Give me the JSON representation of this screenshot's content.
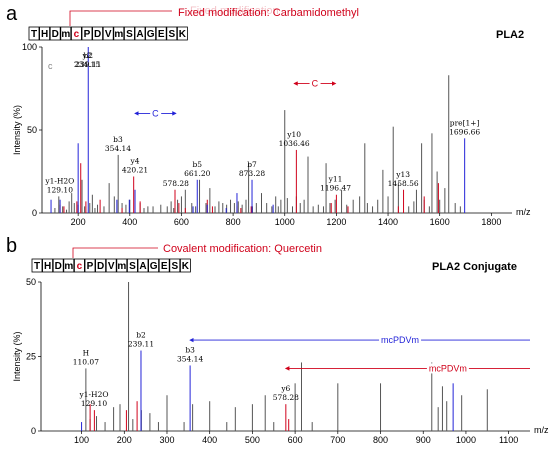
{
  "panels": {
    "a": {
      "letter": "a",
      "sequence": [
        "T",
        "H",
        "D",
        "m",
        "c",
        "P",
        "D",
        "V",
        "m",
        "S",
        "A",
        "G",
        "E",
        "S",
        "K"
      ],
      "highlight_index": 4,
      "note": "Fixed modification: Carbamidomethyl",
      "faded_text": "Fixed modification",
      "title": "PLA2"
    },
    "b": {
      "letter": "b",
      "sequence": [
        "T",
        "H",
        "D",
        "m",
        "c",
        "P",
        "D",
        "V",
        "m",
        "S",
        "A",
        "G",
        "E",
        "S",
        "K"
      ],
      "highlight_index": 4,
      "note": "Covalent modification: Quercetin",
      "title": "PLA2 Conjugate"
    }
  },
  "colors": {
    "red": "#d0021b",
    "blue": "#2323d8",
    "black": "#000000",
    "gray": "#555555"
  },
  "chart_data": [
    {
      "type": "bar",
      "subtype": "mass-spectrum",
      "xlabel": "m/z",
      "ylabel": "Intensity (%)",
      "xlim": [
        60,
        1880
      ],
      "ylim": [
        0,
        100
      ],
      "xticks": [
        200,
        400,
        600,
        800,
        1000,
        1200,
        1400,
        1600,
        1800
      ],
      "yticks": [
        0,
        50,
        100
      ],
      "corner_label": "c",
      "peaks_black": [
        [
          110,
          3
        ],
        [
          125,
          10
        ],
        [
          140,
          4
        ],
        [
          155,
          2
        ],
        [
          165,
          7
        ],
        [
          175,
          12
        ],
        [
          185,
          6
        ],
        [
          200,
          5
        ],
        [
          215,
          20
        ],
        [
          225,
          4
        ],
        [
          245,
          6
        ],
        [
          255,
          11
        ],
        [
          265,
          3
        ],
        [
          275,
          5
        ],
        [
          300,
          4
        ],
        [
          320,
          18
        ],
        [
          340,
          10
        ],
        [
          355,
          35
        ],
        [
          370,
          6
        ],
        [
          385,
          5
        ],
        [
          400,
          8
        ],
        [
          440,
          6
        ],
        [
          455,
          3
        ],
        [
          470,
          4
        ],
        [
          490,
          4
        ],
        [
          520,
          5
        ],
        [
          545,
          4
        ],
        [
          560,
          7
        ],
        [
          570,
          3
        ],
        [
          585,
          8
        ],
        [
          600,
          10
        ],
        [
          615,
          14
        ],
        [
          640,
          6
        ],
        [
          655,
          4
        ],
        [
          670,
          20
        ],
        [
          695,
          6
        ],
        [
          710,
          15
        ],
        [
          730,
          4
        ],
        [
          745,
          7
        ],
        [
          760,
          6
        ],
        [
          775,
          5
        ],
        [
          790,
          8
        ],
        [
          805,
          6
        ],
        [
          820,
          7
        ],
        [
          835,
          5
        ],
        [
          850,
          8
        ],
        [
          860,
          30
        ],
        [
          875,
          4
        ],
        [
          890,
          6
        ],
        [
          910,
          12
        ],
        [
          930,
          6
        ],
        [
          950,
          4
        ],
        [
          965,
          10
        ],
        [
          975,
          4
        ],
        [
          985,
          8
        ],
        [
          1000,
          62
        ],
        [
          1010,
          9
        ],
        [
          1030,
          4
        ],
        [
          1045,
          10
        ],
        [
          1060,
          6
        ],
        [
          1075,
          8
        ],
        [
          1090,
          34
        ],
        [
          1110,
          4
        ],
        [
          1130,
          5
        ],
        [
          1150,
          4
        ],
        [
          1160,
          30
        ],
        [
          1175,
          6
        ],
        [
          1195,
          8
        ],
        [
          1220,
          14
        ],
        [
          1240,
          5
        ],
        [
          1265,
          8
        ],
        [
          1290,
          10
        ],
        [
          1310,
          42
        ],
        [
          1320,
          6
        ],
        [
          1340,
          4
        ],
        [
          1360,
          8
        ],
        [
          1380,
          26
        ],
        [
          1400,
          10
        ],
        [
          1420,
          52
        ],
        [
          1440,
          18
        ],
        [
          1480,
          4
        ],
        [
          1500,
          7
        ],
        [
          1510,
          14
        ],
        [
          1530,
          42
        ],
        [
          1540,
          8
        ],
        [
          1560,
          4
        ],
        [
          1570,
          48
        ],
        [
          1590,
          25
        ],
        [
          1600,
          8
        ],
        [
          1620,
          15
        ],
        [
          1635,
          83
        ],
        [
          1660,
          6
        ],
        [
          1680,
          4
        ]
      ],
      "peaks_red": [
        [
          130,
          5
        ],
        [
          145,
          4
        ],
        [
          195,
          7
        ],
        [
          210,
          30
        ],
        [
          230,
          7
        ],
        [
          285,
          8
        ],
        [
          370,
          3
        ],
        [
          415,
          22
        ],
        [
          440,
          7
        ],
        [
          575,
          14
        ],
        [
          590,
          6
        ],
        [
          615,
          3
        ],
        [
          700,
          8
        ],
        [
          720,
          4
        ],
        [
          815,
          4
        ],
        [
          830,
          3
        ],
        [
          870,
          4
        ],
        [
          1045,
          38
        ],
        [
          1180,
          6
        ],
        [
          1200,
          11
        ],
        [
          1245,
          4
        ],
        [
          1440,
          4
        ],
        [
          1460,
          14
        ],
        [
          1540,
          10
        ],
        [
          1595,
          18
        ]
      ],
      "peaks_blue": [
        [
          95,
          8
        ],
        [
          130,
          8
        ],
        [
          200,
          42
        ],
        [
          239.11,
          100
        ],
        [
          350,
          8
        ],
        [
          398,
          8
        ],
        [
          420.21,
          14
        ],
        [
          645,
          4
        ],
        [
          661.2,
          20
        ],
        [
          700,
          5
        ],
        [
          773.28,
          3
        ],
        [
          815,
          12
        ],
        [
          873.28,
          20
        ],
        [
          955,
          5
        ],
        [
          1696.66,
          45
        ]
      ],
      "annotations": [
        {
          "label": "y1-H2O",
          "value": "129.10",
          "mz": 129.1,
          "type": "y"
        },
        {
          "label": "y2",
          "value": "234.15",
          "mz": 234.15,
          "type": "y"
        },
        {
          "label": "b2",
          "value": "239.11",
          "mz": 239.11,
          "type": "b"
        },
        {
          "label": "b3",
          "value": "354.14",
          "mz": 354.14,
          "type": "b"
        },
        {
          "label": "y4",
          "value": "420.21",
          "mz": 420.21,
          "type": "y"
        },
        {
          "label": "",
          "value": "578.28",
          "mz": 578.28,
          "type": "y"
        },
        {
          "label": "b5",
          "value": "661.20",
          "mz": 661.2,
          "type": "b"
        },
        {
          "label": "b7",
          "value": "873.28",
          "mz": 873.28,
          "type": "b"
        },
        {
          "label": "y10",
          "value": "1036.46",
          "mz": 1036.46,
          "type": "y"
        },
        {
          "label": "y11",
          "value": "1196.47",
          "mz": 1196.47,
          "type": "y"
        },
        {
          "label": "y13",
          "value": "1458.56",
          "mz": 1458.56,
          "type": "y"
        },
        {
          "label": "pre[1+]",
          "value": "1696.66",
          "mz": 1696.66,
          "type": "pre"
        }
      ],
      "spans": [
        {
          "label": "C",
          "from": 420.21,
          "to": 578.28,
          "level": 60,
          "color": "blue"
        },
        {
          "label": "C",
          "from": 1036.46,
          "to": 1196.47,
          "level": 78,
          "color": "red"
        }
      ]
    },
    {
      "type": "bar",
      "subtype": "mass-spectrum",
      "xlabel": "m/z",
      "ylabel": "Intensity (%)",
      "xlim": [
        5,
        1150
      ],
      "ylim": [
        0,
        50
      ],
      "xticks": [
        100,
        200,
        300,
        400,
        500,
        600,
        700,
        800,
        900,
        1000,
        1100
      ],
      "yticks": [
        0,
        25,
        50
      ],
      "peaks_black": [
        [
          110.07,
          21
        ],
        [
          120,
          4
        ],
        [
          135,
          5
        ],
        [
          155,
          3
        ],
        [
          175,
          8
        ],
        [
          190,
          9
        ],
        [
          210,
          50
        ],
        [
          220,
          4
        ],
        [
          240,
          7
        ],
        [
          260,
          6
        ],
        [
          280,
          3
        ],
        [
          300,
          12
        ],
        [
          340,
          3
        ],
        [
          360,
          9
        ],
        [
          400,
          10
        ],
        [
          440,
          3
        ],
        [
          460,
          8
        ],
        [
          500,
          9
        ],
        [
          530,
          12
        ],
        [
          550,
          3
        ],
        [
          600,
          16
        ],
        [
          615,
          23
        ],
        [
          640,
          3
        ],
        [
          700,
          16
        ],
        [
          800,
          16
        ],
        [
          920,
          23
        ],
        [
          935,
          8
        ],
        [
          945,
          15
        ],
        [
          955,
          10
        ],
        [
          990,
          12
        ],
        [
          1050,
          14
        ]
      ],
      "peaks_red": [
        [
          120,
          9
        ],
        [
          130,
          7
        ],
        [
          205,
          7
        ],
        [
          230,
          10
        ],
        [
          578.28,
          9
        ],
        [
          585,
          4
        ]
      ],
      "peaks_blue": [
        [
          100,
          3
        ],
        [
          239.11,
          27
        ],
        [
          354.14,
          22
        ],
        [
          970,
          16
        ]
      ],
      "annotations": [
        {
          "label": "H",
          "value": "110.07",
          "mz": 110.07,
          "type": "y"
        },
        {
          "label": "y1-H2O",
          "value": "129.10",
          "mz": 129.1,
          "type": "y"
        },
        {
          "label": "b2",
          "value": "239.11",
          "mz": 239.11,
          "type": "b"
        },
        {
          "label": "b3",
          "value": "354.14",
          "mz": 354.14,
          "type": "b"
        },
        {
          "label": "y6",
          "value": "578.28",
          "mz": 578.28,
          "type": "y"
        }
      ],
      "spans": [
        {
          "label": "mcPDVm",
          "from": 354.14,
          "to": 1150,
          "level": 30.5,
          "color": "blue",
          "direction": "left"
        },
        {
          "label": "mcPDVm",
          "from": 578.28,
          "to": 1150,
          "level": 21,
          "color": "red",
          "direction": "left"
        }
      ]
    }
  ]
}
